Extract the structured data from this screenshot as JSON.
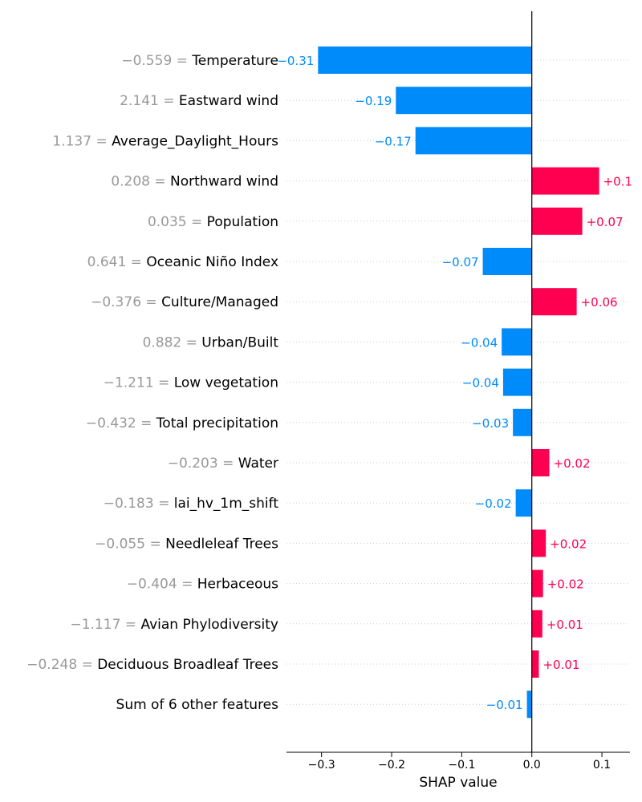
{
  "chart_data": {
    "type": "bar",
    "orientation": "horizontal",
    "title": "",
    "xlabel": "SHAP value",
    "ylabel": "",
    "xlim": [
      -0.35,
      0.14
    ],
    "xticks": [
      -0.3,
      -0.2,
      -0.1,
      0.0,
      0.1
    ],
    "xtick_labels": [
      "−0.3",
      "−0.2",
      "−0.1",
      "0.0",
      "0.1"
    ],
    "grid": false,
    "colors": {
      "positive": "#ff0051",
      "negative": "#008bfb"
    },
    "features": [
      {
        "feature_value": "−0.559",
        "name": "Temperature",
        "value": -0.305,
        "label": "−0.31"
      },
      {
        "feature_value": "2.141",
        "name": "Eastward wind",
        "value": -0.194,
        "label": "−0.19"
      },
      {
        "feature_value": "1.137",
        "name": "Average_Daylight_Hours",
        "value": -0.166,
        "label": "−0.17"
      },
      {
        "feature_value": "0.208",
        "name": "Northward wind",
        "value": 0.096,
        "label": "+0.1"
      },
      {
        "feature_value": "0.035",
        "name": "Population",
        "value": 0.072,
        "label": "+0.07"
      },
      {
        "feature_value": "0.641",
        "name": "Oceanic Niño Index",
        "value": -0.07,
        "label": "−0.07"
      },
      {
        "feature_value": "−0.376",
        "name": "Culture/Managed",
        "value": 0.064,
        "label": "+0.06"
      },
      {
        "feature_value": "0.882",
        "name": "Urban/Built",
        "value": -0.043,
        "label": "−0.04"
      },
      {
        "feature_value": "−1.211",
        "name": "Low vegetation",
        "value": -0.041,
        "label": "−0.04"
      },
      {
        "feature_value": "−0.432",
        "name": "Total precipitation",
        "value": -0.027,
        "label": "−0.03"
      },
      {
        "feature_value": "−0.203",
        "name": "Water",
        "value": 0.025,
        "label": "+0.02"
      },
      {
        "feature_value": "−0.183",
        "name": "lai_hv_1m_shift",
        "value": -0.023,
        "label": "−0.02"
      },
      {
        "feature_value": "−0.055",
        "name": "Needleleaf Trees",
        "value": 0.02,
        "label": "+0.02"
      },
      {
        "feature_value": "−0.404",
        "name": "Herbaceous",
        "value": 0.016,
        "label": "+0.02"
      },
      {
        "feature_value": "−1.117",
        "name": "Avian Phylodiversity",
        "value": 0.015,
        "label": "+0.01"
      },
      {
        "feature_value": "−0.248",
        "name": "Deciduous Broadleaf Trees",
        "value": 0.01,
        "label": "+0.01"
      },
      {
        "feature_value": "",
        "name": "Sum of 6 other features",
        "value": -0.007,
        "label": "−0.01"
      }
    ]
  }
}
